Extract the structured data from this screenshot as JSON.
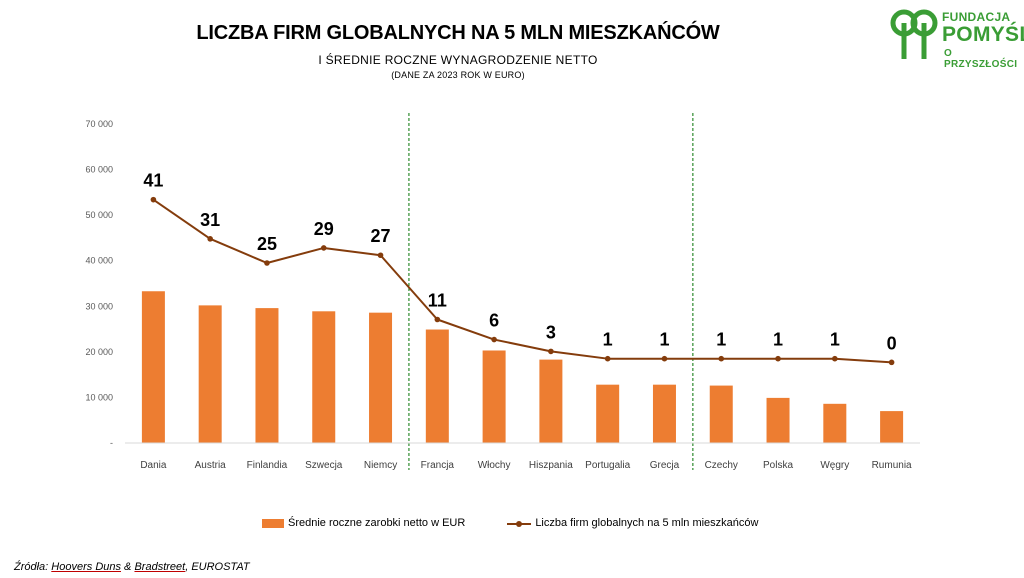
{
  "title": "LICZBA FIRM GLOBALNYCH NA 5 MLN MIESZKAŃCÓW",
  "subtitle": "I ŚREDNIE ROCZNE WYNAGRODZENIE NETTO",
  "note": "(DANE ZA 2023 ROK W EURO)",
  "logo": {
    "line1": "FUNDACJA",
    "line2": "POMYŚL",
    "line3": "O PRZYSZŁOŚCI"
  },
  "source": {
    "prefix": "Źródła: ",
    "part1": "Hoovers Duns",
    "mid": " & ",
    "part2": "Bradstreet",
    "suffix": ", EUROSTAT"
  },
  "chart_data": {
    "type": "bar",
    "categories": [
      "Dania",
      "Austria",
      "Finlandia",
      "Szwecja",
      "Niemcy",
      "Francja",
      "Włochy",
      "Hiszpania",
      "Portugalia",
      "Grecja",
      "Czechy",
      "Polska",
      "Węgry",
      "Rumunia"
    ],
    "series": [
      {
        "name": "Średnie roczne zarobki netto w EUR",
        "type": "bar",
        "values": [
          33300,
          30200,
          29600,
          28900,
          28600,
          24900,
          20300,
          18300,
          12800,
          12800,
          12600,
          9900,
          8600,
          7000
        ]
      },
      {
        "name": "Liczba firm globalnych na 5 mln mieszkańców",
        "type": "line",
        "values": [
          41,
          31,
          25,
          29,
          27,
          11,
          6,
          3,
          1,
          1,
          1,
          1,
          1,
          0
        ],
        "plot_positions": [
          53400,
          44800,
          39500,
          42800,
          41200,
          27100,
          22700,
          20100,
          18500,
          18500,
          18500,
          18500,
          18500,
          17700
        ]
      }
    ],
    "y_ticks": [
      "70 000",
      "60 000",
      "50 000",
      "40 000",
      "30 000",
      "20 000",
      "10 000",
      "-"
    ],
    "ylim": [
      0,
      70000
    ],
    "separators_after": [
      "Niemcy",
      "Grecja"
    ],
    "legend_position": "bottom",
    "grid": false,
    "colors": {
      "bar": "#ed7d31",
      "line": "#843c0c",
      "separator": "#2e8b2e"
    }
  }
}
